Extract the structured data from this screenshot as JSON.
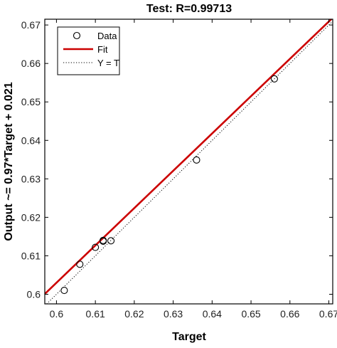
{
  "chart_data": {
    "type": "scatter",
    "title": "Test: R=0.99713",
    "xlabel": "Target",
    "ylabel": "Output ~= 0.97*Target + 0.021",
    "xlim": [
      0.597,
      0.671
    ],
    "ylim": [
      0.5975,
      0.6715
    ],
    "xticks": [
      0.6,
      0.61,
      0.62,
      0.63,
      0.64,
      0.65,
      0.66,
      0.67
    ],
    "yticks": [
      0.6,
      0.61,
      0.62,
      0.63,
      0.64,
      0.65,
      0.66,
      0.67
    ],
    "xtick_labels": [
      "0.6",
      "0.61",
      "0.62",
      "0.63",
      "0.64",
      "0.65",
      "0.66",
      "0.67"
    ],
    "ytick_labels": [
      "0.6",
      "0.61",
      "0.62",
      "0.63",
      "0.64",
      "0.65",
      "0.66",
      "0.67"
    ],
    "grid": false,
    "legend_position": "top-left",
    "series": [
      {
        "name": "Data",
        "kind": "markers",
        "marker": "open-circle",
        "color": "#000000",
        "points": [
          {
            "x": 0.602,
            "y": 0.601
          },
          {
            "x": 0.606,
            "y": 0.6078
          },
          {
            "x": 0.61,
            "y": 0.6122
          },
          {
            "x": 0.612,
            "y": 0.614
          },
          {
            "x": 0.612,
            "y": 0.6138
          },
          {
            "x": 0.614,
            "y": 0.6139
          },
          {
            "x": 0.636,
            "y": 0.6349
          },
          {
            "x": 0.656,
            "y": 0.656
          }
        ]
      },
      {
        "name": "Fit",
        "kind": "line",
        "color": "#cc0000",
        "slope": 0.97,
        "intercept": 0.021
      },
      {
        "name": "Y = T",
        "kind": "dotted-line",
        "color": "#000000",
        "slope": 1,
        "intercept": 0
      }
    ]
  }
}
